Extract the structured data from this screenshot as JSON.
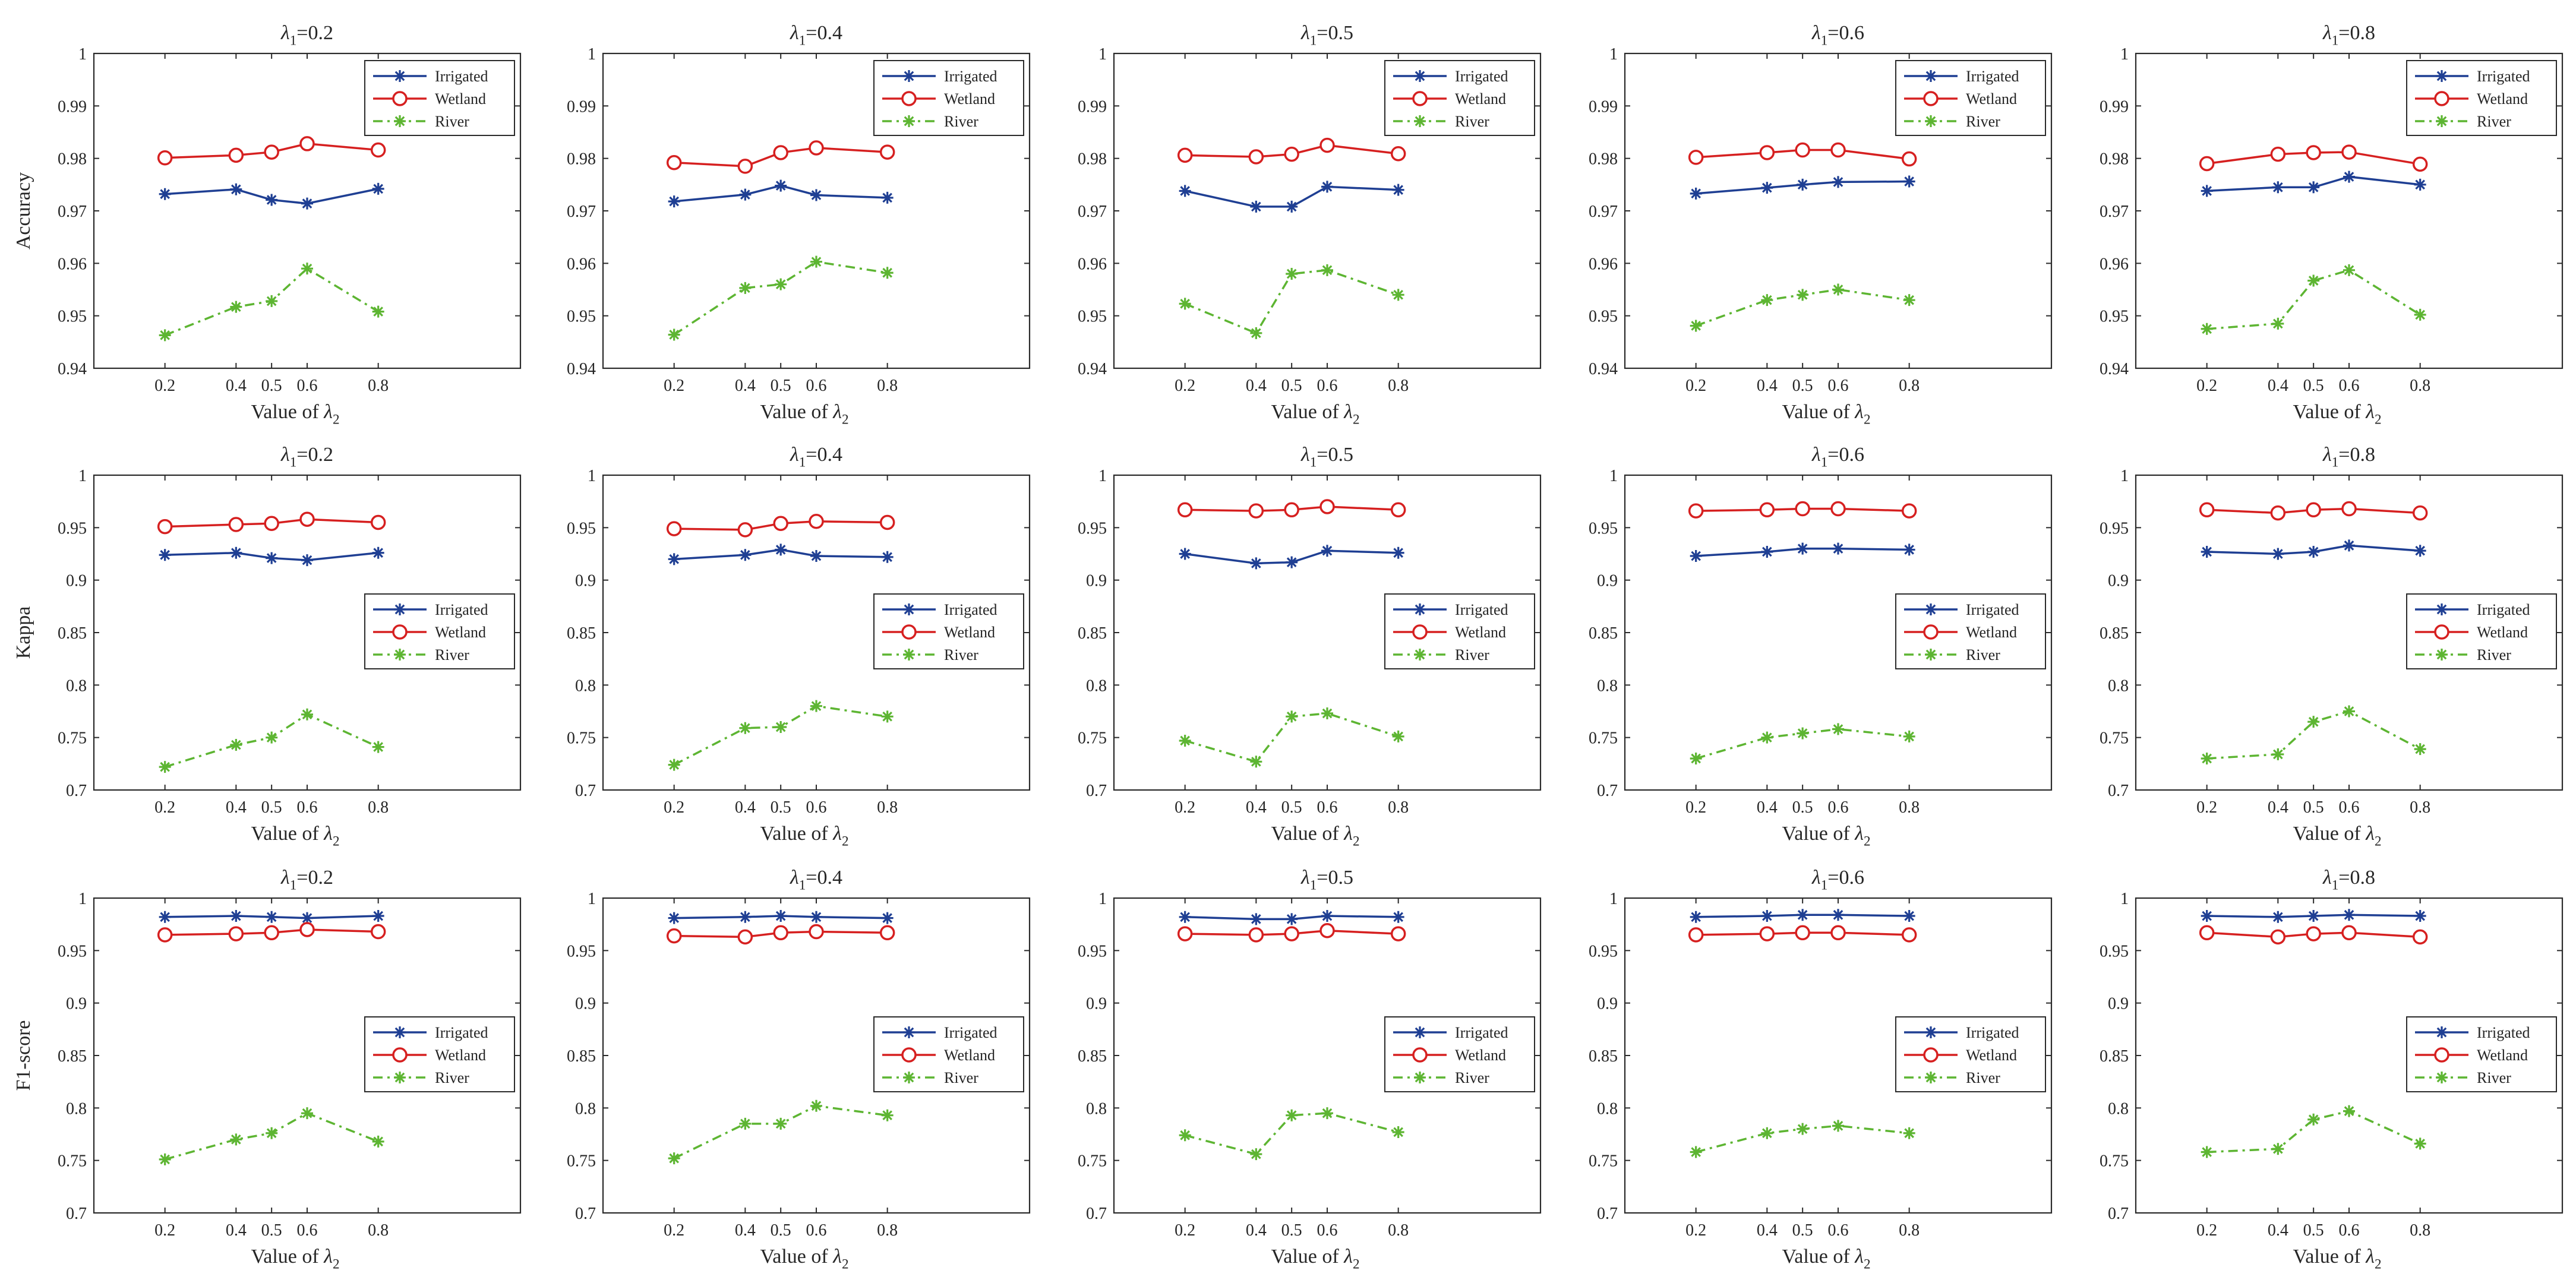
{
  "figure": {
    "x_label_prefix": "Value of",
    "lambda_symbol": "λ",
    "x_sub": "2",
    "title_sub": "1",
    "title_prefix": "=",
    "x_ticks": [
      "0.2",
      "0.4",
      "0.5",
      "0.6",
      "0.8"
    ],
    "x_values": [
      0.2,
      0.4,
      0.5,
      0.6,
      0.8
    ],
    "xlim": [
      0,
      1.2
    ],
    "legend_labels": [
      "Irrigated",
      "Wetland",
      "River"
    ],
    "colors": {
      "Irrigated": "#1f3f93",
      "Wetland": "#d62020",
      "River": "#5db532"
    }
  },
  "rows": [
    {
      "metric": "Accuracy",
      "ylim": [
        0.94,
        1.0
      ],
      "yticks": [
        "0.94",
        "0.95",
        "0.96",
        "0.97",
        "0.98",
        "0.99",
        "1"
      ],
      "legend_pos": "top-right"
    },
    {
      "metric": "Kappa",
      "ylim": [
        0.7,
        1.0
      ],
      "yticks": [
        "0.7",
        "0.75",
        "0.8",
        "0.85",
        "0.9",
        "0.95",
        "1"
      ],
      "legend_pos": "middle-right"
    },
    {
      "metric": "F1-score",
      "ylim": [
        0.7,
        1.0
      ],
      "yticks": [
        "0.7",
        "0.75",
        "0.8",
        "0.85",
        "0.9",
        "0.95",
        "1"
      ],
      "legend_pos": "middle-right"
    }
  ],
  "lambda1_values": [
    "0.2",
    "0.4",
    "0.5",
    "0.6",
    "0.8"
  ],
  "chart_data": [
    {
      "type": "line",
      "title": "λ1=0.2",
      "ylabel": "Accuracy",
      "xlabel": "Value of λ2",
      "categories": [
        "0.2",
        "0.4",
        "0.5",
        "0.6",
        "0.8"
      ],
      "ylim": [
        0.94,
        1.0
      ],
      "series": [
        {
          "name": "Irrigated",
          "values": [
            0.9732,
            0.9741,
            0.9721,
            0.9714,
            0.9742
          ]
        },
        {
          "name": "Wetland",
          "values": [
            0.9801,
            0.9806,
            0.9812,
            0.9828,
            0.9816
          ]
        },
        {
          "name": "River",
          "values": [
            0.9463,
            0.9517,
            0.9528,
            0.959,
            0.9508
          ]
        }
      ]
    },
    {
      "type": "line",
      "title": "λ1=0.4",
      "ylabel": "",
      "xlabel": "Value of λ2",
      "categories": [
        "0.2",
        "0.4",
        "0.5",
        "0.6",
        "0.8"
      ],
      "ylim": [
        0.94,
        1.0
      ],
      "series": [
        {
          "name": "Irrigated",
          "values": [
            0.9718,
            0.9731,
            0.9748,
            0.973,
            0.9725
          ]
        },
        {
          "name": "Wetland",
          "values": [
            0.9792,
            0.9785,
            0.9811,
            0.982,
            0.9812
          ]
        },
        {
          "name": "River",
          "values": [
            0.9464,
            0.9553,
            0.956,
            0.9603,
            0.9582
          ]
        }
      ]
    },
    {
      "type": "line",
      "title": "λ1=0.5",
      "ylabel": "",
      "xlabel": "Value of λ2",
      "categories": [
        "0.2",
        "0.4",
        "0.5",
        "0.6",
        "0.8"
      ],
      "ylim": [
        0.94,
        1.0
      ],
      "series": [
        {
          "name": "Irrigated",
          "values": [
            0.9738,
            0.9708,
            0.9708,
            0.9746,
            0.974
          ]
        },
        {
          "name": "Wetland",
          "values": [
            0.9806,
            0.9803,
            0.9808,
            0.9825,
            0.9809
          ]
        },
        {
          "name": "River",
          "values": [
            0.9523,
            0.9467,
            0.958,
            0.9587,
            0.954
          ]
        }
      ]
    },
    {
      "type": "line",
      "title": "λ1=0.6",
      "ylabel": "",
      "xlabel": "Value of λ2",
      "categories": [
        "0.2",
        "0.4",
        "0.5",
        "0.6",
        "0.8"
      ],
      "ylim": [
        0.94,
        1.0
      ],
      "series": [
        {
          "name": "Irrigated",
          "values": [
            0.9733,
            0.9744,
            0.975,
            0.9755,
            0.9756
          ]
        },
        {
          "name": "Wetland",
          "values": [
            0.9802,
            0.9811,
            0.9816,
            0.9816,
            0.9799
          ]
        },
        {
          "name": "River",
          "values": [
            0.9481,
            0.953,
            0.954,
            0.955,
            0.953
          ]
        }
      ]
    },
    {
      "type": "line",
      "title": "λ1=0.8",
      "ylabel": "",
      "xlabel": "Value of λ2",
      "categories": [
        "0.2",
        "0.4",
        "0.5",
        "0.6",
        "0.8"
      ],
      "ylim": [
        0.94,
        1.0
      ],
      "series": [
        {
          "name": "Irrigated",
          "values": [
            0.9738,
            0.9745,
            0.9745,
            0.9765,
            0.975
          ]
        },
        {
          "name": "Wetland",
          "values": [
            0.979,
            0.9808,
            0.9811,
            0.9812,
            0.9789
          ]
        },
        {
          "name": "River",
          "values": [
            0.9475,
            0.9485,
            0.9567,
            0.9587,
            0.9502
          ]
        }
      ]
    },
    {
      "type": "line",
      "title": "λ1=0.2",
      "ylabel": "Kappa",
      "xlabel": "Value of λ2",
      "categories": [
        "0.2",
        "0.4",
        "0.5",
        "0.6",
        "0.8"
      ],
      "ylim": [
        0.7,
        1.0
      ],
      "series": [
        {
          "name": "Irrigated",
          "values": [
            0.924,
            0.926,
            0.921,
            0.919,
            0.926
          ]
        },
        {
          "name": "Wetland",
          "values": [
            0.951,
            0.953,
            0.954,
            0.958,
            0.955
          ]
        },
        {
          "name": "River",
          "values": [
            0.722,
            0.743,
            0.75,
            0.772,
            0.741
          ]
        }
      ]
    },
    {
      "type": "line",
      "title": "λ1=0.4",
      "ylabel": "",
      "xlabel": "Value of λ2",
      "categories": [
        "0.2",
        "0.4",
        "0.5",
        "0.6",
        "0.8"
      ],
      "ylim": [
        0.7,
        1.0
      ],
      "series": [
        {
          "name": "Irrigated",
          "values": [
            0.92,
            0.924,
            0.929,
            0.923,
            0.922
          ]
        },
        {
          "name": "Wetland",
          "values": [
            0.949,
            0.948,
            0.954,
            0.956,
            0.955
          ]
        },
        {
          "name": "River",
          "values": [
            0.724,
            0.759,
            0.76,
            0.78,
            0.77
          ]
        }
      ]
    },
    {
      "type": "line",
      "title": "λ1=0.5",
      "ylabel": "",
      "xlabel": "Value of λ2",
      "categories": [
        "0.2",
        "0.4",
        "0.5",
        "0.6",
        "0.8"
      ],
      "ylim": [
        0.7,
        1.0
      ],
      "series": [
        {
          "name": "Irrigated",
          "values": [
            0.925,
            0.916,
            0.917,
            0.928,
            0.926
          ]
        },
        {
          "name": "Wetland",
          "values": [
            0.967,
            0.966,
            0.967,
            0.97,
            0.967
          ]
        },
        {
          "name": "River",
          "values": [
            0.747,
            0.727,
            0.77,
            0.773,
            0.751
          ]
        }
      ]
    },
    {
      "type": "line",
      "title": "λ1=0.6",
      "ylabel": "",
      "xlabel": "Value of λ2",
      "categories": [
        "0.2",
        "0.4",
        "0.5",
        "0.6",
        "0.8"
      ],
      "ylim": [
        0.7,
        1.0
      ],
      "series": [
        {
          "name": "Irrigated",
          "values": [
            0.923,
            0.927,
            0.93,
            0.93,
            0.929
          ]
        },
        {
          "name": "Wetland",
          "values": [
            0.966,
            0.967,
            0.968,
            0.968,
            0.966
          ]
        },
        {
          "name": "River",
          "values": [
            0.73,
            0.75,
            0.754,
            0.758,
            0.751
          ]
        }
      ]
    },
    {
      "type": "line",
      "title": "λ1=0.8",
      "ylabel": "",
      "xlabel": "Value of λ2",
      "categories": [
        "0.2",
        "0.4",
        "0.5",
        "0.6",
        "0.8"
      ],
      "ylim": [
        0.7,
        1.0
      ],
      "series": [
        {
          "name": "Irrigated",
          "values": [
            0.927,
            0.925,
            0.927,
            0.933,
            0.928
          ]
        },
        {
          "name": "Wetland",
          "values": [
            0.967,
            0.964,
            0.967,
            0.968,
            0.964
          ]
        },
        {
          "name": "River",
          "values": [
            0.73,
            0.734,
            0.765,
            0.775,
            0.739
          ]
        }
      ]
    },
    {
      "type": "line",
      "title": "λ1=0.2",
      "ylabel": "F1-score",
      "xlabel": "Value of λ2",
      "categories": [
        "0.2",
        "0.4",
        "0.5",
        "0.6",
        "0.8"
      ],
      "ylim": [
        0.7,
        1.0
      ],
      "series": [
        {
          "name": "Irrigated",
          "values": [
            0.982,
            0.983,
            0.982,
            0.981,
            0.983
          ]
        },
        {
          "name": "Wetland",
          "values": [
            0.965,
            0.966,
            0.967,
            0.97,
            0.968
          ]
        },
        {
          "name": "River",
          "values": [
            0.751,
            0.77,
            0.776,
            0.795,
            0.768
          ]
        }
      ]
    },
    {
      "type": "line",
      "title": "λ1=0.4",
      "ylabel": "",
      "xlabel": "Value of λ2",
      "categories": [
        "0.2",
        "0.4",
        "0.5",
        "0.6",
        "0.8"
      ],
      "ylim": [
        0.7,
        1.0
      ],
      "series": [
        {
          "name": "Irrigated",
          "values": [
            0.981,
            0.982,
            0.983,
            0.982,
            0.981
          ]
        },
        {
          "name": "Wetland",
          "values": [
            0.964,
            0.963,
            0.967,
            0.968,
            0.967
          ]
        },
        {
          "name": "River",
          "values": [
            0.752,
            0.785,
            0.785,
            0.802,
            0.793
          ]
        }
      ]
    },
    {
      "type": "line",
      "title": "λ1=0.5",
      "ylabel": "",
      "xlabel": "Value of λ2",
      "categories": [
        "0.2",
        "0.4",
        "0.5",
        "0.6",
        "0.8"
      ],
      "ylim": [
        0.7,
        1.0
      ],
      "series": [
        {
          "name": "Irrigated",
          "values": [
            0.982,
            0.98,
            0.98,
            0.983,
            0.982
          ]
        },
        {
          "name": "Wetland",
          "values": [
            0.966,
            0.965,
            0.966,
            0.969,
            0.966
          ]
        },
        {
          "name": "River",
          "values": [
            0.774,
            0.756,
            0.793,
            0.795,
            0.777
          ]
        }
      ]
    },
    {
      "type": "line",
      "title": "λ1=0.6",
      "ylabel": "",
      "xlabel": "Value of λ2",
      "categories": [
        "0.2",
        "0.4",
        "0.5",
        "0.6",
        "0.8"
      ],
      "ylim": [
        0.7,
        1.0
      ],
      "series": [
        {
          "name": "Irrigated",
          "values": [
            0.982,
            0.983,
            0.984,
            0.984,
            0.983
          ]
        },
        {
          "name": "Wetland",
          "values": [
            0.965,
            0.966,
            0.967,
            0.967,
            0.965
          ]
        },
        {
          "name": "River",
          "values": [
            0.758,
            0.776,
            0.78,
            0.783,
            0.776
          ]
        }
      ]
    },
    {
      "type": "line",
      "title": "λ1=0.8",
      "ylabel": "",
      "xlabel": "Value of λ2",
      "categories": [
        "0.2",
        "0.4",
        "0.5",
        "0.6",
        "0.8"
      ],
      "ylim": [
        0.7,
        1.0
      ],
      "series": [
        {
          "name": "Irrigated",
          "values": [
            0.983,
            0.982,
            0.983,
            0.984,
            0.983
          ]
        },
        {
          "name": "Wetland",
          "values": [
            0.967,
            0.963,
            0.966,
            0.967,
            0.963
          ]
        },
        {
          "name": "River",
          "values": [
            0.758,
            0.761,
            0.789,
            0.797,
            0.766
          ]
        }
      ]
    }
  ]
}
